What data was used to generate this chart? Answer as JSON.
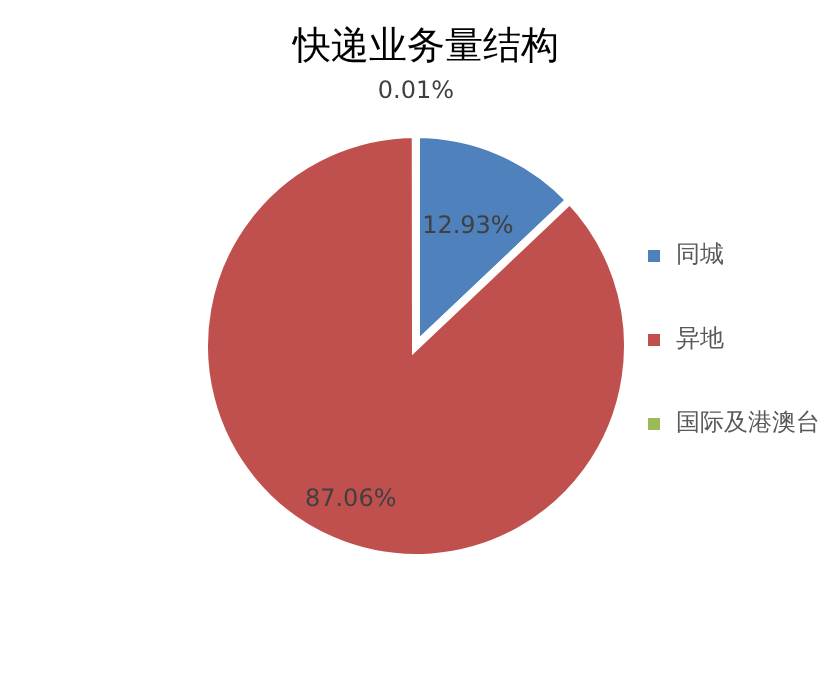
{
  "chart_data": {
    "type": "pie",
    "title": "快递业务量结构",
    "categories": [
      "同城",
      "异地",
      "国际及港澳台"
    ],
    "values": [
      12.93,
      87.06,
      0.01
    ],
    "colors": [
      "#4f81bd",
      "#c0504d",
      "#9bbb59"
    ],
    "value_labels": [
      "12.93%",
      "87.06%",
      "0.01%"
    ],
    "legend": "right"
  }
}
